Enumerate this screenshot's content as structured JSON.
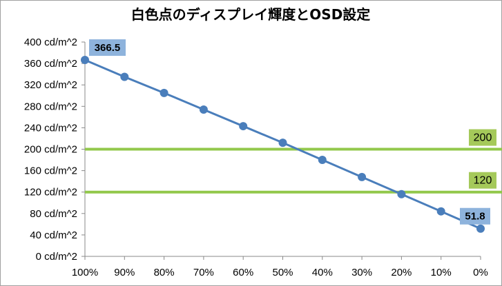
{
  "chart_data": {
    "type": "line",
    "title": "白色点のディスプレイ輝度とOSD設定",
    "categories": [
      "100%",
      "90%",
      "80%",
      "70%",
      "60%",
      "50%",
      "40%",
      "30%",
      "20%",
      "10%",
      "0%"
    ],
    "series": [
      {
        "values": [
          366.5,
          335,
          305,
          274,
          243,
          212,
          180,
          148,
          116,
          84,
          51.8
        ]
      }
    ],
    "data_labels": [
      {
        "index": 0,
        "text": "366.5"
      },
      {
        "index": 10,
        "text": "51.8"
      }
    ],
    "reference_lines": [
      {
        "value": 200,
        "label": "200"
      },
      {
        "value": 120,
        "label": "120"
      }
    ],
    "y_tick_labels": [
      "0 cd/m^2",
      "40 cd/m^2",
      "80 cd/m^2",
      "120 cd/m^2",
      "160 cd/m^2",
      "200 cd/m^2",
      "240 cd/m^2",
      "280 cd/m^2",
      "320 cd/m^2",
      "360 cd/m^2",
      "400 cd/m^2"
    ],
    "ylim": [
      0,
      400
    ],
    "grid": false,
    "legend": "none",
    "colors": {
      "series": "#4a7ebb",
      "reference_line": "#92c84b",
      "value_label_bg": "#8eb3dc",
      "ref_label_bg": "#a5c95a",
      "axis": "#888888",
      "border": "#a0a0a0"
    }
  }
}
